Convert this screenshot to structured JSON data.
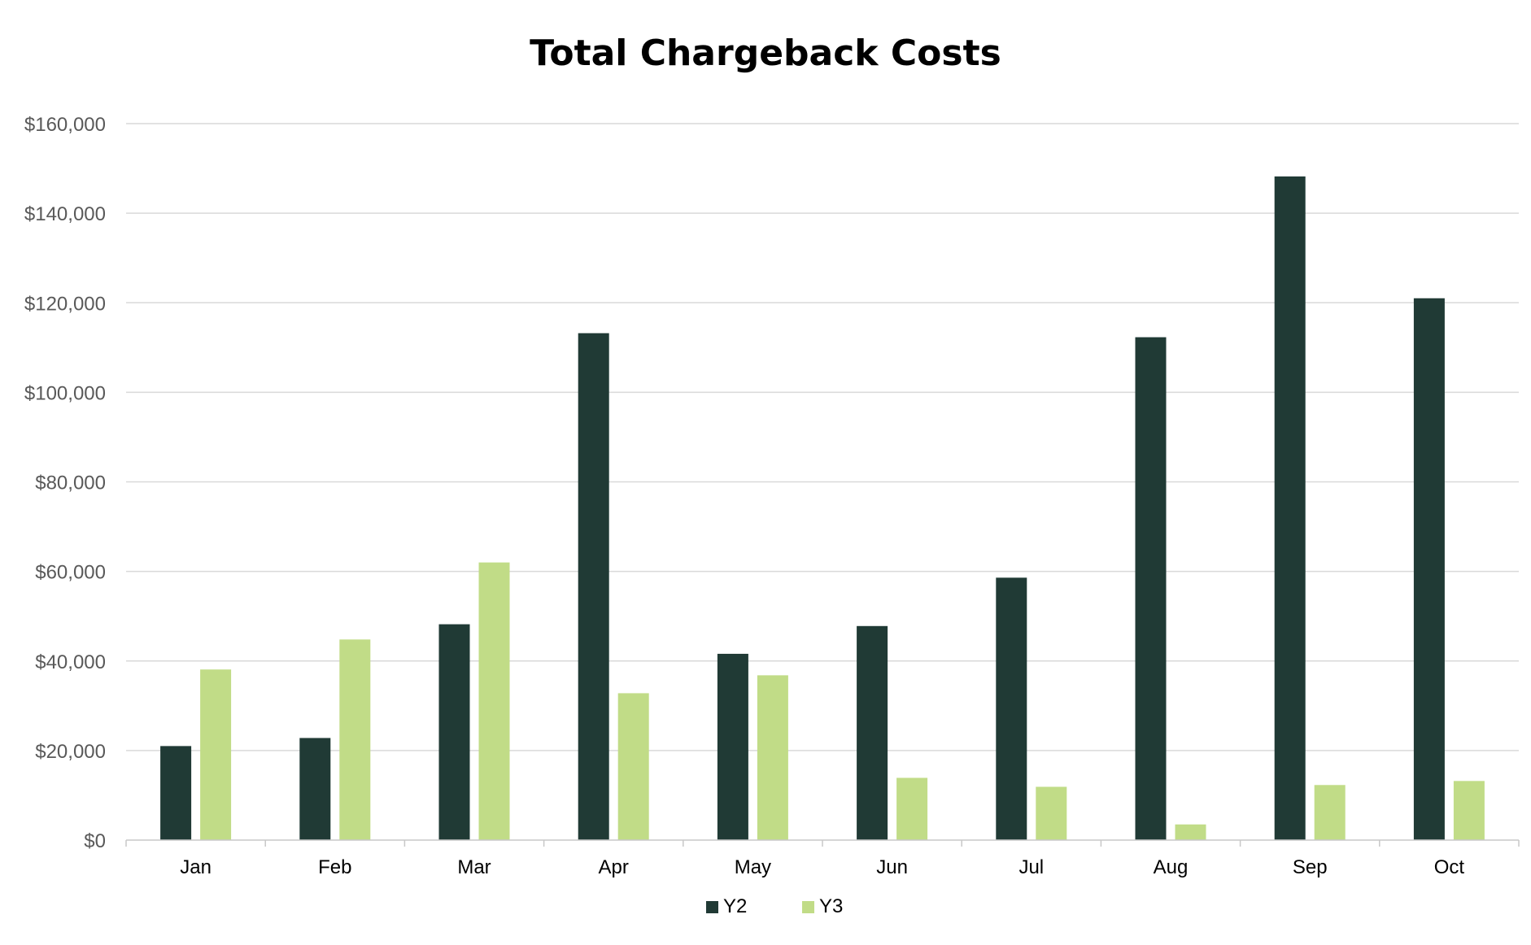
{
  "chart_data": {
    "type": "bar",
    "title": "Total Chargeback Costs",
    "xlabel": "",
    "ylabel": "",
    "categories": [
      "Jan",
      "Feb",
      "Mar",
      "Apr",
      "May",
      "Jun",
      "Jul",
      "Aug",
      "Sep",
      "Oct"
    ],
    "series": [
      {
        "name": "Y2",
        "color": "#203a35",
        "values": [
          21000,
          22800,
          48200,
          113200,
          41600,
          47800,
          58600,
          112300,
          148200,
          121000
        ]
      },
      {
        "name": "Y3",
        "color": "#c1dc87",
        "values": [
          38100,
          44800,
          62000,
          32800,
          36800,
          13900,
          11900,
          3500,
          12300,
          13200
        ]
      }
    ],
    "ylim": [
      0,
      160000
    ],
    "yticks": [
      0,
      20000,
      40000,
      60000,
      80000,
      100000,
      120000,
      140000,
      160000
    ],
    "ytick_labels": [
      "$0",
      "$20,000",
      "$40,000",
      "$60,000",
      "$80,000",
      "$100,000",
      "$120,000",
      "$140,000",
      "$160,000"
    ],
    "grid": true,
    "legend_position": "bottom-center",
    "gridline_color": "#d9d9d9"
  }
}
